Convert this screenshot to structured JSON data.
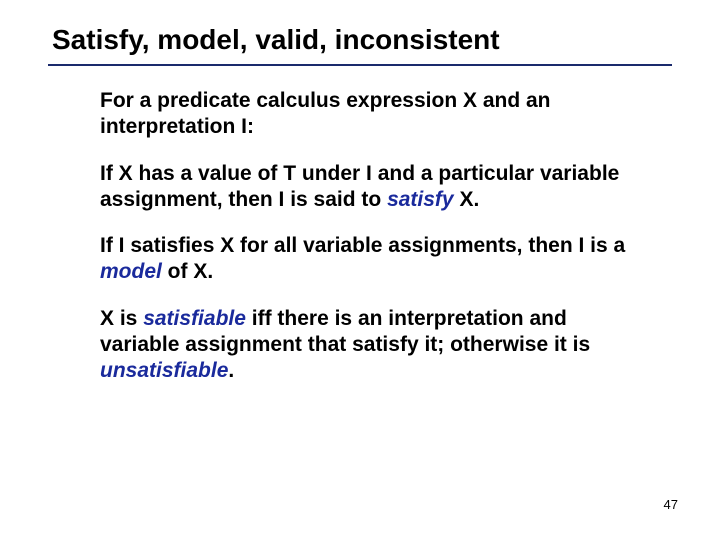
{
  "title": "Satisfy, model, valid, inconsistent",
  "colors": {
    "rule": "#1a2a6c",
    "term": "#1a2a9c",
    "text": "#000000",
    "background": "#ffffff"
  },
  "paragraphs": {
    "p1": "For a predicate calculus expression X and an interpretation I:",
    "p2a": "If X has a value of T under I and a particular variable assignment, then I is said to ",
    "p2term": "satisfy",
    "p2b": " X.",
    "p3a": "If I satisfies X for all variable assignments, then I is a ",
    "p3term": "model",
    "p3b": " of X.",
    "p4a": "X is ",
    "p4term1": "satisfiable",
    "p4b": " iff there is an interpretation and variable assignment that satisfy it; otherwise it is ",
    "p4term2": "unsatisfiable",
    "p4c": "."
  },
  "page_number": "47",
  "typography": {
    "title_fontsize": 28,
    "body_fontsize": 21,
    "pagenum_fontsize": 13,
    "font_family": "Arial",
    "body_weight": "bold"
  }
}
